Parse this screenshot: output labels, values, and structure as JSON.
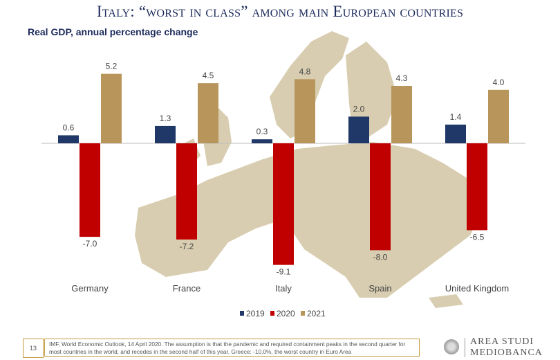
{
  "header": {
    "title": "Italy: “worst in class” among main European countries",
    "subtitle": "Real GDP, annual percentage change"
  },
  "chart_data": {
    "type": "bar",
    "categories": [
      "Germany",
      "France",
      "Italy",
      "Spain",
      "United Kingdom"
    ],
    "series": [
      {
        "name": "2019",
        "color": "#1f3868",
        "values": [
          0.6,
          1.3,
          0.3,
          2.0,
          1.4
        ]
      },
      {
        "name": "2020",
        "color": "#c00000",
        "values": [
          -7.0,
          -7.2,
          -9.1,
          -8.0,
          -6.5
        ]
      },
      {
        "name": "2021",
        "color": "#b8955a",
        "values": [
          5.2,
          4.5,
          4.8,
          4.3,
          4.0
        ]
      }
    ],
    "ylim": [
      -10,
      6
    ],
    "legend": "bottom",
    "grid": false
  },
  "footer": {
    "page": "13",
    "note": "IMF, World Economic Outlook, 14 April 2020.  The assumption is that the pandemic and required containment peaks in the second quarter for most countries in the world, and recedes in the second half of this year. Greece: -10,0%, the worst country in Euro Area",
    "brand_line1": "AREA STUDI",
    "brand_line2": "MEDIOBANCA"
  }
}
